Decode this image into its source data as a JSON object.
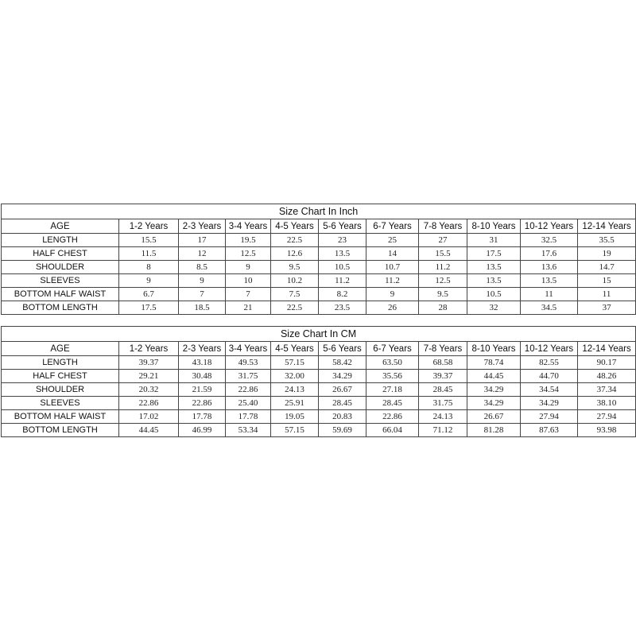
{
  "columns": [
    "1-2 Years",
    "2-3 Years",
    "3-4 Years",
    "4-5 Years",
    "5-6 Years",
    "6-7 Years",
    "7-8 Years",
    "8-10 Years",
    "10-12 Years",
    "12-14 Years"
  ],
  "tables": [
    {
      "title": "Size Chart In Inch",
      "header_label": "AGE",
      "rows": [
        {
          "label": "LENGTH",
          "values": [
            "15.5",
            "17",
            "19.5",
            "22.5",
            "23",
            "25",
            "27",
            "31",
            "32.5",
            "35.5"
          ]
        },
        {
          "label": "HALF CHEST",
          "values": [
            "11.5",
            "12",
            "12.5",
            "12.6",
            "13.5",
            "14",
            "15.5",
            "17.5",
            "17.6",
            "19"
          ]
        },
        {
          "label": "SHOULDER",
          "values": [
            "8",
            "8.5",
            "9",
            "9.5",
            "10.5",
            "10.7",
            "11.2",
            "13.5",
            "13.6",
            "14.7"
          ]
        },
        {
          "label": "SLEEVES",
          "values": [
            "9",
            "9",
            "10",
            "10.2",
            "11.2",
            "11.2",
            "12.5",
            "13.5",
            "13.5",
            "15"
          ]
        },
        {
          "label": "BOTTOM  HALF WAIST",
          "values": [
            "6.7",
            "7",
            "7",
            "7.5",
            "8.2",
            "9",
            "9.5",
            "10.5",
            "11",
            "11"
          ]
        },
        {
          "label": "BOTTOM LENGTH",
          "values": [
            "17.5",
            "18.5",
            "21",
            "22.5",
            "23.5",
            "26",
            "28",
            "32",
            "34.5",
            "37"
          ]
        }
      ]
    },
    {
      "title": "Size Chart In CM",
      "header_label": "AGE",
      "rows": [
        {
          "label": "LENGTH",
          "values": [
            "39.37",
            "43.18",
            "49.53",
            "57.15",
            "58.42",
            "63.50",
            "68.58",
            "78.74",
            "82.55",
            "90.17"
          ]
        },
        {
          "label": "HALF CHEST",
          "values": [
            "29.21",
            "30.48",
            "31.75",
            "32.00",
            "34.29",
            "35.56",
            "39.37",
            "44.45",
            "44.70",
            "48.26"
          ]
        },
        {
          "label": "SHOULDER",
          "values": [
            "20.32",
            "21.59",
            "22.86",
            "24.13",
            "26.67",
            "27.18",
            "28.45",
            "34.29",
            "34.54",
            "37.34"
          ]
        },
        {
          "label": "SLEEVES",
          "values": [
            "22.86",
            "22.86",
            "25.40",
            "25.91",
            "28.45",
            "28.45",
            "31.75",
            "34.29",
            "34.29",
            "38.10"
          ]
        },
        {
          "label": "BOTTOM  HALF WAIST",
          "values": [
            "17.02",
            "17.78",
            "17.78",
            "19.05",
            "20.83",
            "22.86",
            "24.13",
            "26.67",
            "27.94",
            "27.94"
          ]
        },
        {
          "label": "BOTTOM LENGTH",
          "values": [
            "44.45",
            "46.99",
            "53.34",
            "57.15",
            "59.69",
            "66.04",
            "71.12",
            "81.28",
            "87.63",
            "93.98"
          ]
        }
      ]
    }
  ]
}
